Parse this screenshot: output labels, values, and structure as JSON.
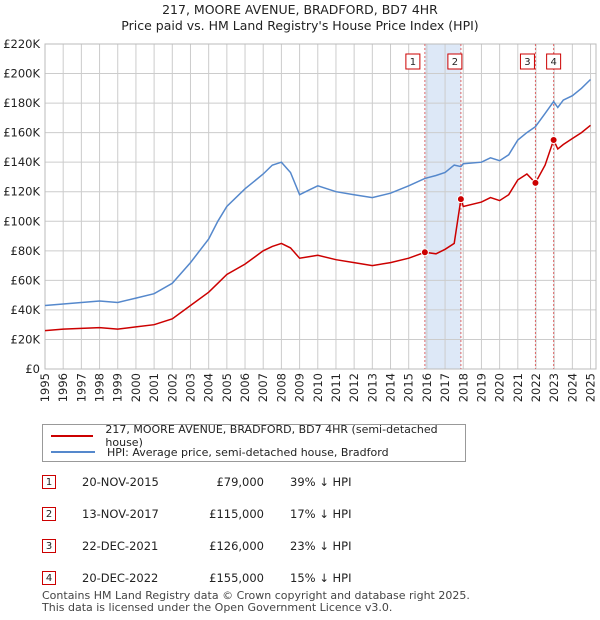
{
  "chart_data": {
    "type": "line",
    "title": "217, MOORE AVENUE, BRADFORD, BD7 4HR",
    "subtitle": "Price paid vs. HM Land Registry's House Price Index (HPI)",
    "xlabel": "",
    "ylabel": "",
    "xlim": [
      1995,
      2025.3
    ],
    "ylim": [
      0,
      220000
    ],
    "y_ticks": [
      0,
      20000,
      40000,
      60000,
      80000,
      100000,
      120000,
      140000,
      160000,
      180000,
      200000,
      220000
    ],
    "y_tick_labels": [
      "£0",
      "£20K",
      "£40K",
      "£60K",
      "£80K",
      "£100K",
      "£120K",
      "£140K",
      "£160K",
      "£180K",
      "£200K",
      "£220K"
    ],
    "x_ticks": [
      1995,
      1996,
      1997,
      1998,
      1999,
      2000,
      2001,
      2002,
      2003,
      2004,
      2005,
      2006,
      2007,
      2008,
      2009,
      2010,
      2011,
      2012,
      2013,
      2014,
      2015,
      2016,
      2017,
      2018,
      2019,
      2020,
      2021,
      2022,
      2023,
      2024,
      2025
    ],
    "grid": true,
    "series": [
      {
        "name": "217, MOORE AVENUE, BRADFORD, BD7 4HR (semi-detached house)",
        "color": "#cc0000",
        "x": [
          1995.0,
          1996.0,
          1997.0,
          1998.0,
          1999.0,
          2000.0,
          2001.0,
          2002.0,
          2003.0,
          2004.0,
          2004.5,
          2005.0,
          2006.0,
          2007.0,
          2007.5,
          2008.0,
          2008.5,
          2009.0,
          2009.5,
          2010.0,
          2011.0,
          2012.0,
          2013.0,
          2014.0,
          2015.0,
          2015.89,
          2016.5,
          2017.0,
          2017.5,
          2017.87,
          2018.0,
          2019.0,
          2019.5,
          2020.0,
          2020.5,
          2021.0,
          2021.5,
          2021.97,
          2022.5,
          2022.97,
          2023.2,
          2023.5,
          2024.0,
          2024.5,
          2025.0
        ],
        "y": [
          26000,
          27000,
          27500,
          28000,
          27000,
          28500,
          30000,
          34000,
          43000,
          52000,
          58000,
          64000,
          71000,
          80000,
          83000,
          85000,
          82000,
          75000,
          76000,
          77000,
          74000,
          72000,
          70000,
          72000,
          75000,
          79000,
          78000,
          81000,
          85000,
          115000,
          110000,
          113000,
          116000,
          114000,
          118000,
          128000,
          132000,
          126000,
          138000,
          155000,
          149000,
          152000,
          156000,
          160000,
          165000
        ]
      },
      {
        "name": "HPI: Average price, semi-detached house, Bradford",
        "color": "#5588cc",
        "x": [
          1995.0,
          1996.0,
          1997.0,
          1998.0,
          1999.0,
          2000.0,
          2001.0,
          2002.0,
          2003.0,
          2004.0,
          2004.5,
          2005.0,
          2006.0,
          2007.0,
          2007.5,
          2008.0,
          2008.5,
          2009.0,
          2009.5,
          2010.0,
          2011.0,
          2012.0,
          2013.0,
          2014.0,
          2015.0,
          2015.89,
          2016.5,
          2017.0,
          2017.5,
          2017.87,
          2018.0,
          2019.0,
          2019.5,
          2020.0,
          2020.5,
          2021.0,
          2021.5,
          2021.97,
          2022.5,
          2022.97,
          2023.2,
          2023.5,
          2024.0,
          2024.5,
          2025.0
        ],
        "y": [
          43000,
          44000,
          45000,
          46000,
          45000,
          48000,
          51000,
          58000,
          72000,
          88000,
          100000,
          110000,
          122000,
          132000,
          138000,
          140000,
          133000,
          118000,
          121000,
          124000,
          120000,
          118000,
          116000,
          119000,
          124000,
          129000,
          131000,
          133000,
          138000,
          137000,
          139000,
          140000,
          143000,
          141000,
          145000,
          155000,
          160000,
          164000,
          173000,
          181000,
          177000,
          182000,
          185000,
          190000,
          196000
        ]
      }
    ],
    "sales": [
      {
        "label": "1",
        "x": 2015.89,
        "y": 79000
      },
      {
        "label": "2",
        "x": 2017.87,
        "y": 115000
      },
      {
        "label": "3",
        "x": 2021.97,
        "y": 126000
      },
      {
        "label": "4",
        "x": 2022.97,
        "y": 155000
      }
    ],
    "shaded_range": [
      2015.89,
      2017.87
    ]
  },
  "legend": {
    "property_label": "217, MOORE AVENUE, BRADFORD, BD7 4HR (semi-detached house)",
    "hpi_label": "HPI: Average price, semi-detached house, Bradford"
  },
  "transactions": [
    {
      "num": "1",
      "date": "20-NOV-2015",
      "price": "£79,000",
      "hpi": "39% ↓ HPI"
    },
    {
      "num": "2",
      "date": "13-NOV-2017",
      "price": "£115,000",
      "hpi": "17% ↓ HPI"
    },
    {
      "num": "3",
      "date": "22-DEC-2021",
      "price": "£126,000",
      "hpi": "23% ↓ HPI"
    },
    {
      "num": "4",
      "date": "20-DEC-2022",
      "price": "£155,000",
      "hpi": "15% ↓ HPI"
    }
  ],
  "footer": {
    "line1": "Contains HM Land Registry data © Crown copyright and database right 2025.",
    "line2": "This data is licensed under the Open Government Licence v3.0."
  },
  "colors": {
    "property": "#cc0000",
    "hpi": "#5588cc",
    "shade": "#dde8f7",
    "grid": "#cccccc"
  }
}
